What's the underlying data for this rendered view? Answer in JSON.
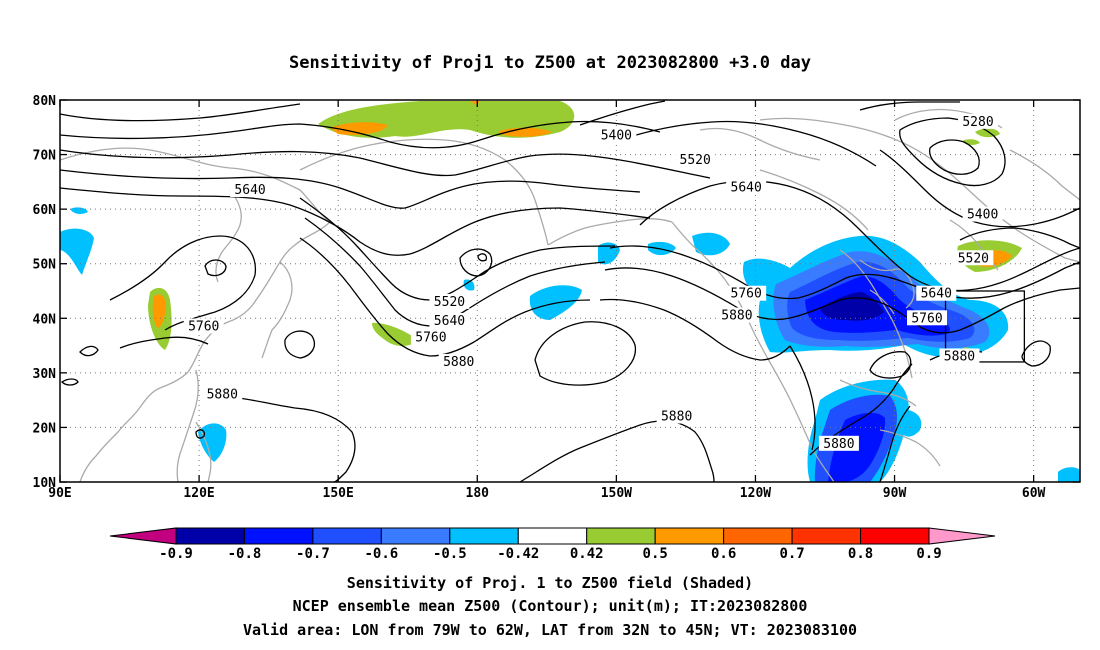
{
  "title": "Sensitivity of Proj1 to Z500 at 2023082800 +3.0 day",
  "map": {
    "lon_range": [
      90,
      310
    ],
    "lat_range": [
      10,
      80
    ],
    "x_ticks": [
      "90E",
      "120E",
      "150E",
      "180",
      "150W",
      "120W",
      "90W",
      "60W"
    ],
    "y_ticks": [
      "80N",
      "70N",
      "60N",
      "50N",
      "40N",
      "30N",
      "20N",
      "10N"
    ],
    "grid": "dotted",
    "contour_labels": [
      {
        "text": "5400",
        "lon": 210,
        "lat": 73.5
      },
      {
        "text": "5280",
        "lon": 288,
        "lat": 76
      },
      {
        "text": "5520",
        "lon": 227,
        "lat": 69
      },
      {
        "text": "5640",
        "lon": 131,
        "lat": 63.5
      },
      {
        "text": "5640",
        "lon": 238,
        "lat": 64
      },
      {
        "text": "5400",
        "lon": 289,
        "lat": 59
      },
      {
        "text": "5520",
        "lon": 287,
        "lat": 51
      },
      {
        "text": "5520",
        "lon": 174,
        "lat": 43
      },
      {
        "text": "5640",
        "lon": 174,
        "lat": 39.5
      },
      {
        "text": "5760",
        "lon": 238,
        "lat": 44.5
      },
      {
        "text": "5640",
        "lon": 279,
        "lat": 44.5
      },
      {
        "text": "5880",
        "lon": 236,
        "lat": 40.5
      },
      {
        "text": "5760",
        "lon": 277,
        "lat": 40
      },
      {
        "text": "5760",
        "lon": 170,
        "lat": 36.5
      },
      {
        "text": "5760",
        "lon": 121,
        "lat": 38.5
      },
      {
        "text": "5880",
        "lon": 176,
        "lat": 32
      },
      {
        "text": "5880",
        "lon": 284,
        "lat": 33
      },
      {
        "text": "5880",
        "lon": 125,
        "lat": 26
      },
      {
        "text": "5880",
        "lon": 223,
        "lat": 22
      },
      {
        "text": "5880",
        "lon": 258,
        "lat": 17
      }
    ],
    "valid_box": {
      "lon": [
        281,
        298
      ],
      "lat": [
        32,
        45
      ]
    }
  },
  "colorbar": {
    "labels": [
      "-0.9",
      "-0.8",
      "-0.7",
      "-0.6",
      "-0.5",
      "-0.42",
      "0.42",
      "0.5",
      "0.6",
      "0.7",
      "0.8",
      "0.9"
    ],
    "colors": [
      "#c2007f",
      "#0000a8",
      "#0011ff",
      "#1f4fff",
      "#3a7cff",
      "#00c0ff",
      "#ffffff",
      "#99cc33",
      "#ff9900",
      "#ff6600",
      "#ff3300",
      "#ff0000",
      "#ff99cc"
    ]
  },
  "caption": {
    "line1": "Sensitivity of Proj. 1 to Z500 field (Shaded)",
    "line2": "NCEP ensemble mean Z500 (Contour); unit(m); IT:2023082800",
    "line3": "Valid area: LON from 79W to 62W, LAT from 32N to 45N; VT: 2023083100"
  }
}
